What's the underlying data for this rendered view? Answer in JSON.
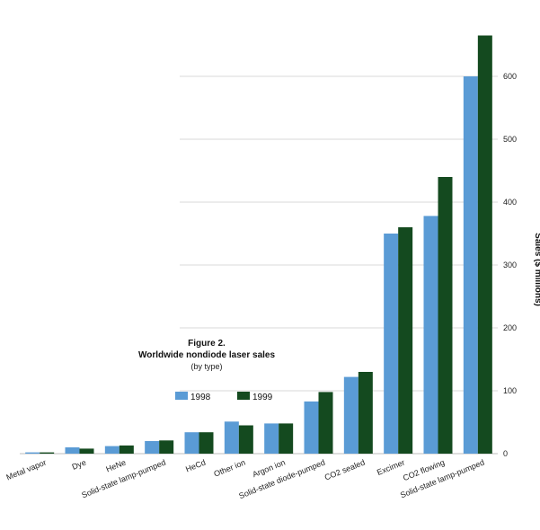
{
  "chart_data": {
    "type": "bar",
    "title": "Figure 2.",
    "subtitle": "Worldwide nondiode laser sales",
    "subtitle2": "(by type)",
    "ylabel": "Sales ($ millions)",
    "xlabel": "",
    "ylim": [
      0,
      700
    ],
    "yticks": [
      0,
      100,
      200,
      300,
      400,
      500,
      600
    ],
    "grid": true,
    "legend_position": "center-left",
    "categories": [
      "Metal vapor",
      "Dye",
      "HeNe",
      "Solid-state lamp-pumped",
      "HeCd",
      "Other ion",
      "Argon ion",
      "Solid-state diode-pumped",
      "CO2 sealed",
      "Excimer",
      "CO2 flowing",
      "Solid-state lamp-pumped"
    ],
    "series": [
      {
        "name": "1998",
        "color": "#5a9bd5",
        "values": [
          2,
          10,
          12,
          20,
          34,
          51,
          48,
          83,
          122,
          350,
          378,
          600
        ]
      },
      {
        "name": "1999",
        "color": "#144a1f",
        "values": [
          2,
          8,
          13,
          21,
          34,
          45,
          48,
          98,
          130,
          360,
          440,
          665
        ]
      }
    ]
  }
}
